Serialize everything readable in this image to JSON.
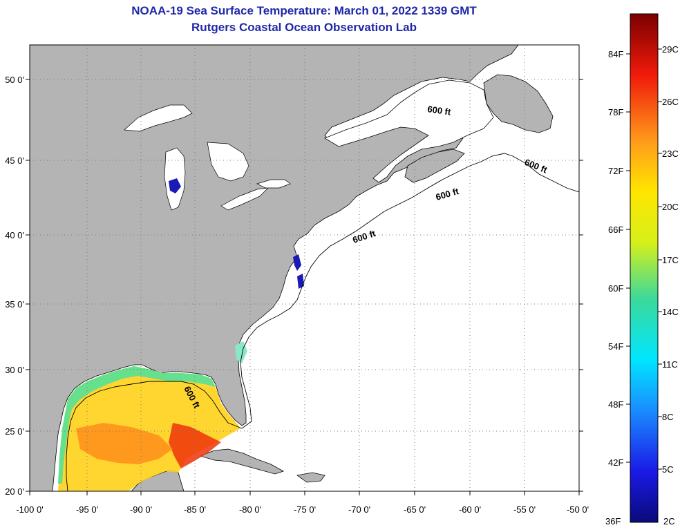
{
  "title": {
    "line1": "NOAA-19 Sea Surface Temperature:  March 01, 2022 1339 GMT",
    "line2": "Rutgers Coastal Ocean Observation Lab"
  },
  "map": {
    "lon_labels": [
      "-100 0'",
      "-95 0'",
      "-90 0'",
      "-85 0'",
      "-80 0'",
      "-75 0'",
      "-70 0'",
      "-65 0'",
      "-60 0'",
      "-55 0'",
      "-50 0'"
    ],
    "lat_labels": [
      "50 0'",
      "45 0'",
      "40 0'",
      "35 0'",
      "30 0'",
      "25 0'",
      "20 0'"
    ],
    "isobath_label": "600 ft",
    "land_color": "#b4b4b4",
    "water_color": "#ffffff"
  },
  "colorbar": {
    "f_labels": [
      "84F",
      "78F",
      "72F",
      "66F",
      "60F",
      "54F",
      "48F",
      "42F",
      "36F"
    ],
    "c_labels": [
      "29C",
      "26C",
      "23C",
      "20C",
      "17C",
      "14C",
      "11C",
      "8C",
      "5C",
      "2C"
    ]
  }
}
